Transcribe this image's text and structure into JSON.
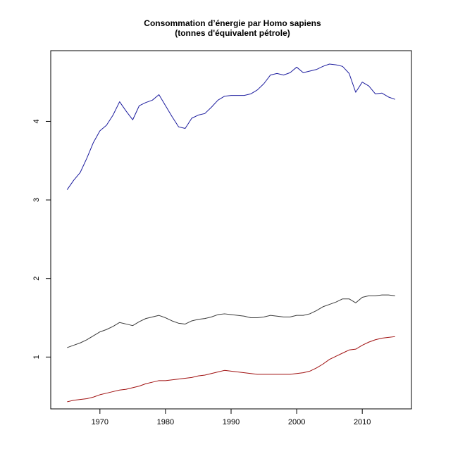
{
  "chart_data": {
    "type": "line",
    "title": "Consommation d’énergie par Homo sapiens",
    "subtitle": "(tonnes d'équivalent pétrole)",
    "xlabel": "",
    "ylabel": "",
    "xlim": [
      1962.5,
      2017.5
    ],
    "ylim": [
      0.34,
      4.9
    ],
    "x_ticks": [
      1970,
      1980,
      1990,
      2000,
      2010
    ],
    "y_ticks": [
      1,
      2,
      3,
      4
    ],
    "grid": false,
    "legend": "none",
    "x": [
      1965,
      1966,
      1967,
      1968,
      1969,
      1970,
      1971,
      1972,
      1973,
      1974,
      1975,
      1976,
      1977,
      1978,
      1979,
      1980,
      1981,
      1982,
      1983,
      1984,
      1985,
      1986,
      1987,
      1988,
      1989,
      1990,
      1991,
      1992,
      1993,
      1994,
      1995,
      1996,
      1997,
      1998,
      1999,
      2000,
      2001,
      2002,
      2003,
      2004,
      2005,
      2006,
      2007,
      2008,
      2009,
      2010,
      2011,
      2012,
      2013,
      2014,
      2015
    ],
    "series": [
      {
        "color": "#1c1c9e",
        "values": [
          3.13,
          3.25,
          3.35,
          3.53,
          3.73,
          3.88,
          3.95,
          4.08,
          4.25,
          4.13,
          4.02,
          4.2,
          4.24,
          4.27,
          4.34,
          4.2,
          4.06,
          3.93,
          3.91,
          4.04,
          4.08,
          4.1,
          4.18,
          4.27,
          4.32,
          4.33,
          4.33,
          4.33,
          4.35,
          4.4,
          4.48,
          4.59,
          4.61,
          4.59,
          4.62,
          4.69,
          4.62,
          4.64,
          4.66,
          4.7,
          4.73,
          4.72,
          4.7,
          4.61,
          4.37,
          4.5,
          4.45,
          4.35,
          4.36,
          4.31,
          4.28
        ]
      },
      {
        "color": "#3a3a3a",
        "values": [
          1.12,
          1.15,
          1.18,
          1.22,
          1.27,
          1.32,
          1.35,
          1.39,
          1.44,
          1.42,
          1.4,
          1.45,
          1.49,
          1.51,
          1.53,
          1.5,
          1.46,
          1.43,
          1.42,
          1.46,
          1.48,
          1.49,
          1.51,
          1.54,
          1.55,
          1.54,
          1.53,
          1.52,
          1.5,
          1.5,
          1.51,
          1.53,
          1.52,
          1.51,
          1.51,
          1.53,
          1.53,
          1.55,
          1.59,
          1.64,
          1.67,
          1.7,
          1.74,
          1.74,
          1.69,
          1.76,
          1.78,
          1.78,
          1.79,
          1.79,
          1.78
        ]
      },
      {
        "color": "#a01010",
        "values": [
          0.43,
          0.45,
          0.46,
          0.47,
          0.49,
          0.52,
          0.54,
          0.56,
          0.58,
          0.59,
          0.61,
          0.63,
          0.66,
          0.68,
          0.7,
          0.7,
          0.71,
          0.72,
          0.73,
          0.74,
          0.76,
          0.77,
          0.79,
          0.81,
          0.83,
          0.82,
          0.81,
          0.8,
          0.79,
          0.78,
          0.78,
          0.78,
          0.78,
          0.78,
          0.78,
          0.79,
          0.8,
          0.82,
          0.86,
          0.91,
          0.97,
          1.01,
          1.05,
          1.09,
          1.1,
          1.15,
          1.19,
          1.22,
          1.24,
          1.25,
          1.26
        ]
      }
    ]
  }
}
